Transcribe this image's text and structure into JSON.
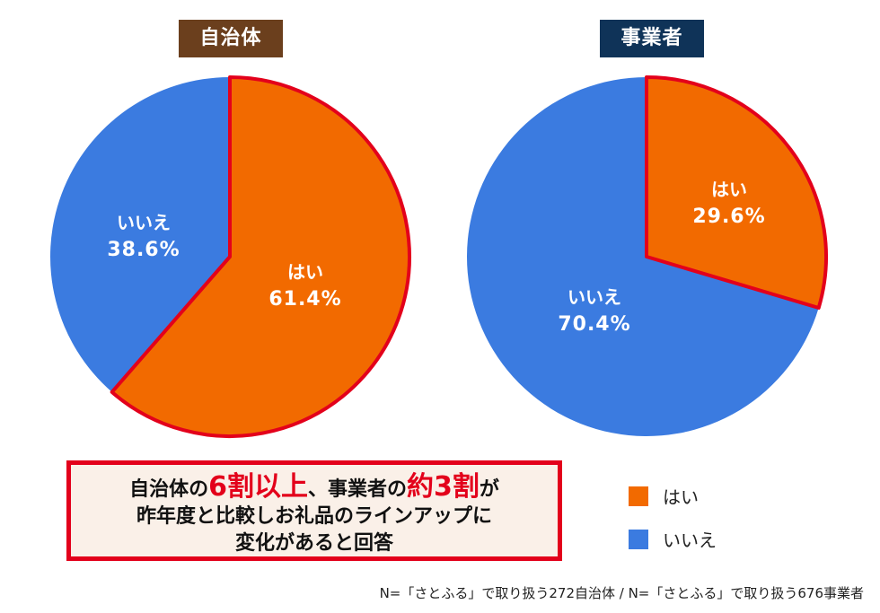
{
  "colors": {
    "yes": "#f26a00",
    "no": "#3b7be0",
    "highlight_border": "#e3001b",
    "label_box_left": "#6b3f1d",
    "label_box_right": "#0f3358"
  },
  "chart_data": [
    {
      "type": "pie",
      "title": "自治体",
      "slices": [
        {
          "label": "はい",
          "value": 61.4,
          "display": "61.4%"
        },
        {
          "label": "いいえ",
          "value": 38.6,
          "display": "38.6%"
        }
      ]
    },
    {
      "type": "pie",
      "title": "事業者",
      "slices": [
        {
          "label": "はい",
          "value": 29.6,
          "display": "29.6%"
        },
        {
          "label": "いいえ",
          "value": 70.4,
          "display": "70.4%"
        }
      ]
    }
  ],
  "callout": {
    "line1_a": "自治体の",
    "line1_b": "6割以上",
    "line1_c": "、事業者の",
    "line1_d": "約3割",
    "line1_e": "が",
    "line2": "昨年度と比較しお礼品のラインアップに",
    "line3": "変化があると回答"
  },
  "legend": [
    {
      "label": "はい",
      "color": "#f26a00"
    },
    {
      "label": "いいえ",
      "color": "#3b7be0"
    }
  ],
  "footnote": "N=「さとふる」で取り扱う272自治体 / N=「さとふる」で取り扱う676事業者"
}
